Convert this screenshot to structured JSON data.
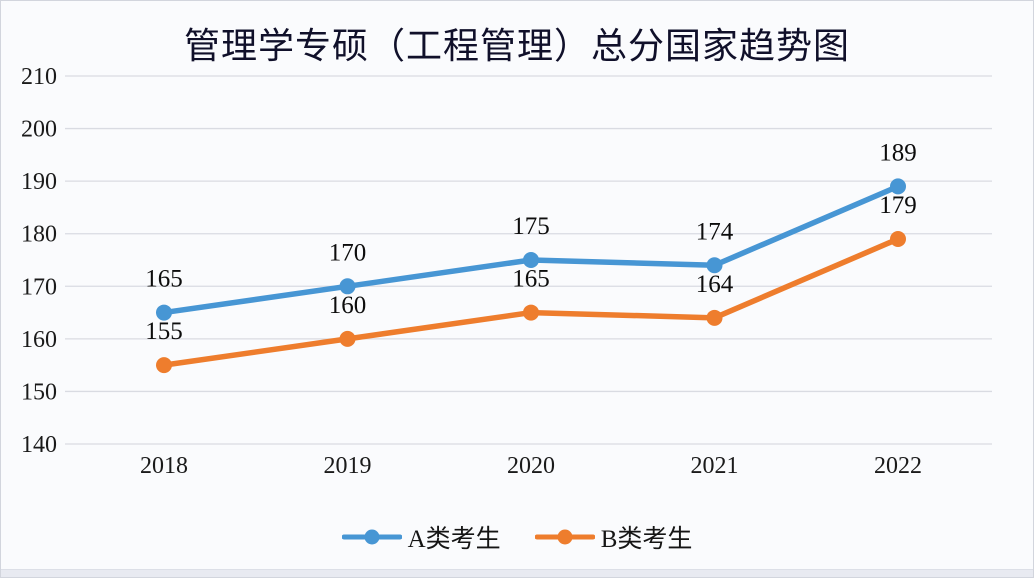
{
  "chart_data": {
    "type": "line",
    "title": "管理学专硕（工程管理）总分国家趋势图",
    "categories": [
      "2018",
      "2019",
      "2020",
      "2021",
      "2022"
    ],
    "series": [
      {
        "name": "A类考生",
        "color": "#4796d4",
        "values": [
          165,
          170,
          175,
          174,
          189
        ]
      },
      {
        "name": "B类考生",
        "color": "#ee7d2d",
        "values": [
          155,
          160,
          165,
          164,
          179
        ]
      }
    ],
    "y_ticks": [
      210,
      200,
      190,
      180,
      170,
      160,
      150,
      140
    ],
    "ylim": [
      140,
      210
    ],
    "xlabel": "",
    "ylabel": "",
    "grid": true,
    "data_labels": true,
    "legend_position": "bottom"
  }
}
